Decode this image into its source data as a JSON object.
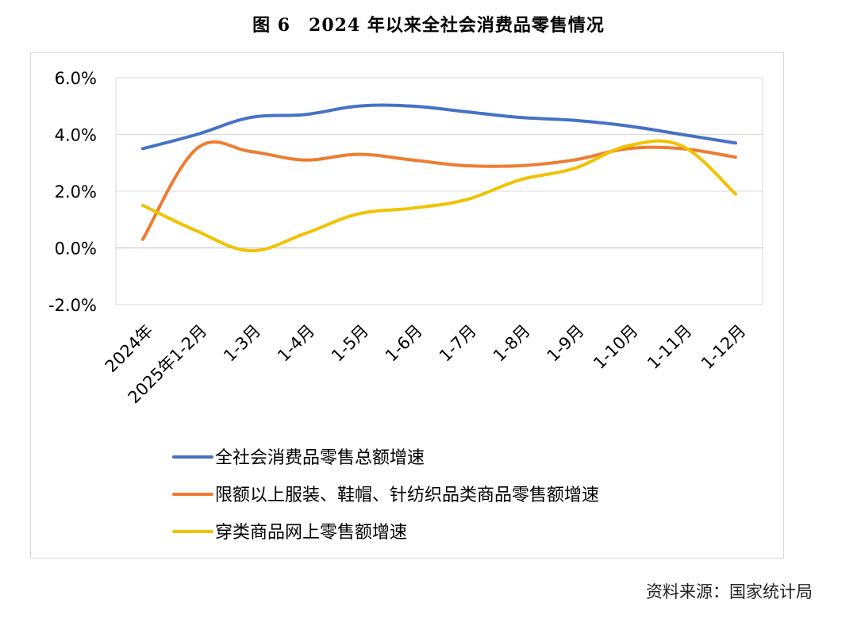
{
  "figure_title": "图 6　2024 年以来全社会消费品零售情况",
  "source_note": "资料来源：国家统计局",
  "chart_data": {
    "type": "line",
    "title": "",
    "xlabel": "",
    "ylabel": "",
    "categories": [
      "2024年",
      "2025年1-2月",
      "1-3月",
      "1-4月",
      "1-5月",
      "1-6月",
      "1-7月",
      "1-8月",
      "1-9月",
      "1-10月",
      "1-11月",
      "1-12月"
    ],
    "ylim": [
      -2.0,
      6.0
    ],
    "y_ticks": [
      "-2.0%",
      "0.0%",
      "2.0%",
      "4.0%",
      "6.0%"
    ],
    "y_tick_values": [
      -2,
      0,
      2,
      4,
      6
    ],
    "grid": true,
    "legend_position": "bottom",
    "series": [
      {
        "name": "全社会消费品零售总额增速",
        "color": "#4472C4",
        "values": [
          3.5,
          4.0,
          4.6,
          4.7,
          5.0,
          5.0,
          4.8,
          4.6,
          4.5,
          4.3,
          4.0,
          3.7
        ]
      },
      {
        "name": "限额以上服装、鞋帽、针纺织品类商品零售额增速",
        "color": "#ED7D31",
        "values": [
          0.3,
          3.5,
          3.4,
          3.1,
          3.3,
          3.1,
          2.9,
          2.9,
          3.1,
          3.5,
          3.5,
          3.2
        ]
      },
      {
        "name": "穿类商品网上零售额增速",
        "color": "#F2C200",
        "values": [
          1.5,
          0.6,
          -0.1,
          0.5,
          1.2,
          1.4,
          1.7,
          2.4,
          2.8,
          3.6,
          3.6,
          1.9
        ]
      }
    ]
  }
}
